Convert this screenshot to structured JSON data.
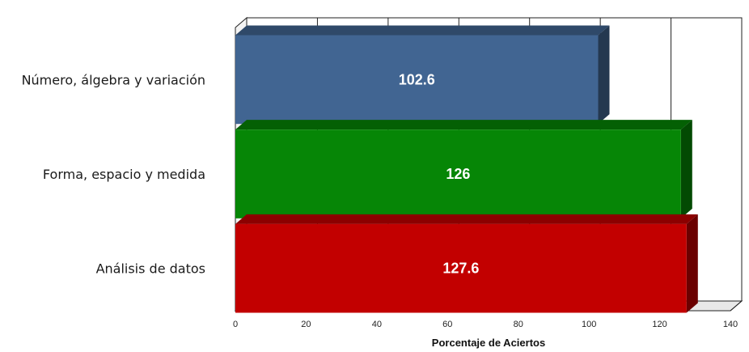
{
  "chart_data": {
    "type": "bar",
    "orientation": "horizontal",
    "three_d": true,
    "categories": [
      "Número, álgebra y variación",
      "Forma, espacio y medida",
      "Análisis de datos"
    ],
    "values": [
      102.6,
      126,
      127.6
    ],
    "data_labels": [
      "102.6",
      "126",
      "127.6"
    ],
    "colors": [
      "#416592",
      "#068606",
      "#c20000"
    ],
    "xlabel": "Porcentaje de Aciertos",
    "xlim": [
      0,
      140
    ],
    "xticks": [
      0,
      20,
      40,
      60,
      80,
      100,
      120,
      140
    ],
    "xtick_labels": [
      "0",
      "20",
      "40",
      "60",
      "80",
      "100",
      "120",
      "140"
    ],
    "grid": true,
    "legend": "none"
  }
}
